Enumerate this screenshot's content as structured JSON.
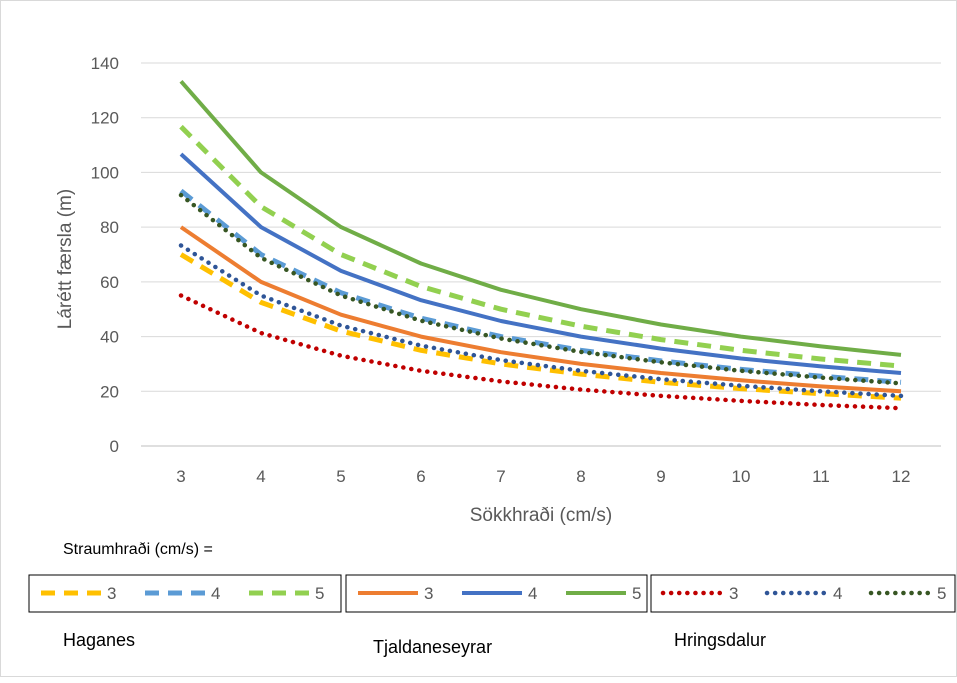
{
  "chart_data": {
    "type": "line",
    "title": "",
    "xlabel": "Sökkhraði (cm/s)",
    "ylabel": "Lárétt færsla (m)",
    "x": [
      3,
      4,
      5,
      6,
      7,
      8,
      9,
      10,
      11,
      12
    ],
    "ylim": [
      0,
      140
    ],
    "yticks": [
      0,
      20,
      40,
      60,
      80,
      100,
      120,
      140
    ],
    "grid": true,
    "legend_caption": "Straumhraði (cm/s) =",
    "groups": [
      {
        "name": "Haganes",
        "line_style": "dash"
      },
      {
        "name": "Tjaldaneseyrar",
        "line_style": "solid"
      },
      {
        "name": "Hringsdalur",
        "line_style": "dot"
      }
    ],
    "series": [
      {
        "name": "3",
        "group": "Haganes",
        "line_style": "dash",
        "color": "#ffc000",
        "values": [
          70.0,
          52.5,
          42.0,
          35.0,
          30.0,
          26.3,
          23.3,
          21.0,
          19.1,
          17.5
        ]
      },
      {
        "name": "4",
        "group": "Haganes",
        "line_style": "dash",
        "color": "#5b9bd5",
        "values": [
          93.3,
          70.0,
          56.0,
          46.7,
          40.0,
          35.0,
          31.1,
          28.0,
          25.5,
          23.3
        ]
      },
      {
        "name": "5",
        "group": "Haganes",
        "line_style": "dash",
        "color": "#92d050",
        "values": [
          116.7,
          87.5,
          70.0,
          58.3,
          50.0,
          43.8,
          38.9,
          35.0,
          31.8,
          29.2
        ]
      },
      {
        "name": "3",
        "group": "Tjaldaneseyrar",
        "line_style": "solid",
        "color": "#ed7d31",
        "values": [
          80.0,
          60.0,
          48.0,
          40.0,
          34.3,
          30.0,
          26.7,
          24.0,
          21.8,
          20.0
        ]
      },
      {
        "name": "4",
        "group": "Tjaldaneseyrar",
        "line_style": "solid",
        "color": "#4472c4",
        "values": [
          106.7,
          80.0,
          64.0,
          53.3,
          45.7,
          40.0,
          35.6,
          32.0,
          29.1,
          26.7
        ]
      },
      {
        "name": "5",
        "group": "Tjaldaneseyrar",
        "line_style": "solid",
        "color": "#70ad47",
        "values": [
          133.3,
          100.0,
          80.0,
          66.7,
          57.1,
          50.0,
          44.4,
          40.0,
          36.4,
          33.3
        ]
      },
      {
        "name": "3",
        "group": "Hringsdalur",
        "line_style": "dot",
        "color": "#c00000",
        "values": [
          55.0,
          41.3,
          33.0,
          27.5,
          23.6,
          20.6,
          18.3,
          16.5,
          15.0,
          13.8
        ]
      },
      {
        "name": "4",
        "group": "Hringsdalur",
        "line_style": "dot",
        "color": "#2f5597",
        "values": [
          73.3,
          55.0,
          44.0,
          36.7,
          31.4,
          27.5,
          24.4,
          22.0,
          20.0,
          18.3
        ]
      },
      {
        "name": "5",
        "group": "Hringsdalur",
        "line_style": "dot",
        "color": "#375623",
        "values": [
          91.7,
          68.8,
          55.0,
          45.8,
          39.3,
          34.4,
          30.6,
          27.5,
          25.0,
          22.9
        ]
      }
    ]
  }
}
